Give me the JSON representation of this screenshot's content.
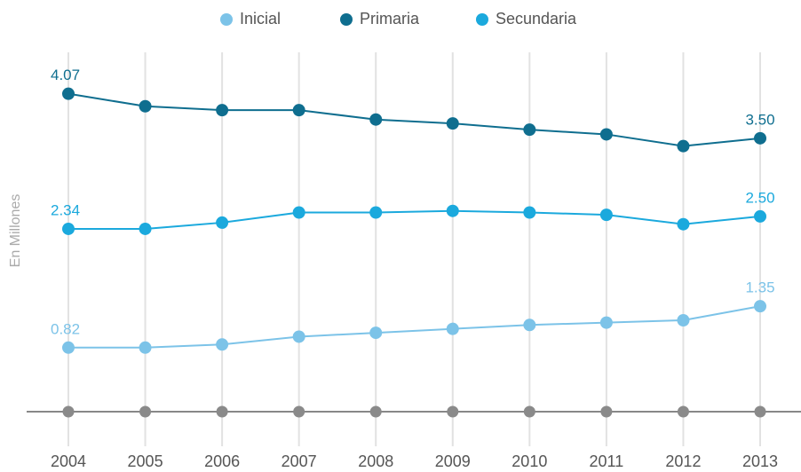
{
  "chart_data": {
    "type": "line",
    "y_label": "En Millones",
    "x": [
      "2004",
      "2005",
      "2006",
      "2007",
      "2008",
      "2009",
      "2010",
      "2011",
      "2012",
      "2013"
    ],
    "series": [
      {
        "name": "Inicial",
        "color": "#7cc3e8",
        "values": [
          0.82,
          0.82,
          0.86,
          0.96,
          1.01,
          1.06,
          1.11,
          1.14,
          1.17,
          1.35
        ],
        "value_labels": [
          "0.82",
          null,
          null,
          null,
          null,
          null,
          null,
          null,
          null,
          "1.35"
        ]
      },
      {
        "name": "Primaria",
        "color": "#0f6e8f",
        "values": [
          4.07,
          3.91,
          3.86,
          3.86,
          3.74,
          3.69,
          3.61,
          3.55,
          3.4,
          3.5
        ],
        "value_labels": [
          "4.07",
          null,
          null,
          null,
          null,
          null,
          null,
          null,
          null,
          "3.50"
        ]
      },
      {
        "name": "Secundaria",
        "color": "#1ba9dd",
        "values": [
          2.34,
          2.34,
          2.42,
          2.55,
          2.55,
          2.57,
          2.55,
          2.52,
          2.4,
          2.5
        ],
        "value_labels": [
          "2.34",
          null,
          null,
          null,
          null,
          null,
          null,
          null,
          null,
          "2.50"
        ]
      }
    ],
    "ylim": [
      0,
      4.6
    ],
    "legend": "top",
    "grid": true
  }
}
